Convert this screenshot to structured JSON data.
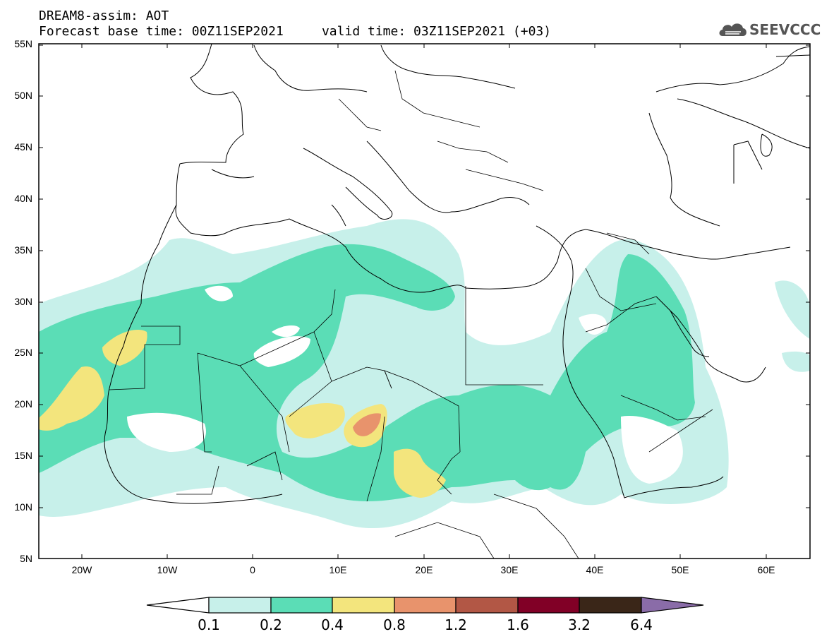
{
  "header": {
    "title_line1": "DREAM8-assim: AOT",
    "title_line2": "Forecast base time: 00Z11SEP2021     valid time: 03Z11SEP2021 (+03)"
  },
  "logo": {
    "text": "SEEVCCC",
    "icon": "cloud-icon"
  },
  "map": {
    "variable": "AOT",
    "lat_range": [
      5,
      55
    ],
    "lon_range": [
      -25,
      65
    ],
    "lat_labels": [
      "55N",
      "50N",
      "45N",
      "40N",
      "35N",
      "30N",
      "25N",
      "20N",
      "15N",
      "10N",
      "5N"
    ],
    "lon_labels": [
      "20W",
      "10W",
      "0",
      "10E",
      "20E",
      "30E",
      "40E",
      "50E",
      "60E"
    ]
  },
  "colorbar": {
    "levels": [
      "0.1",
      "0.2",
      "0.4",
      "0.8",
      "1.2",
      "1.6",
      "3.2",
      "6.4"
    ],
    "colors": [
      "#c7f0ea",
      "#5bddb6",
      "#f3e57d",
      "#e8936c",
      "#b25745",
      "#810026",
      "#3a2618",
      "#8a6ca8"
    ]
  }
}
